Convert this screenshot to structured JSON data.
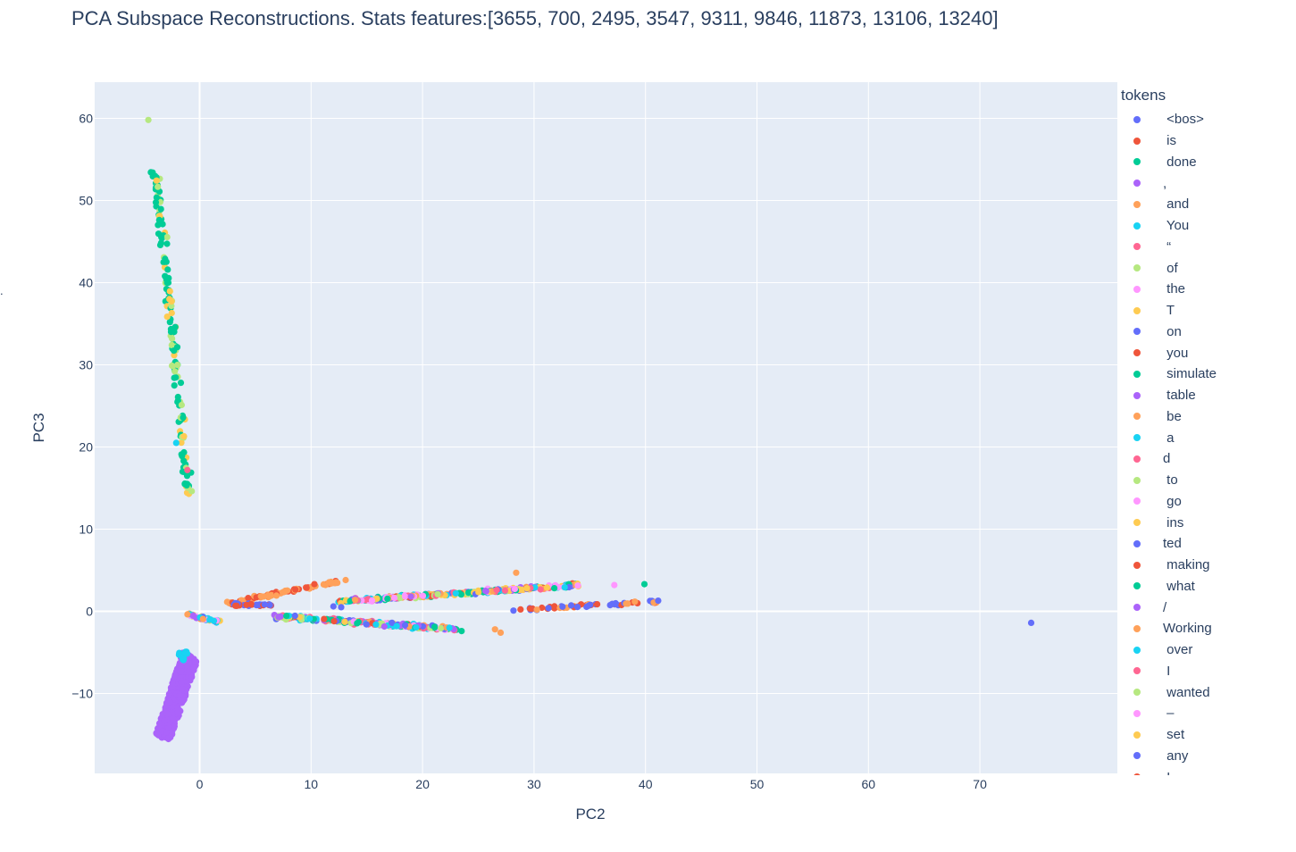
{
  "chart_data": {
    "type": "scatter",
    "title": "PCA Subspace Reconstructions. Stats features:[3655, 700, 2495, 3547, 9311, 9846, 11873, 13106, 13240]",
    "xlabel": "PC2",
    "ylabel": "PC3",
    "xlim": [
      -9.5,
      82
    ],
    "ylim": [
      -19.5,
      64.5
    ],
    "x_ticks": [
      0,
      10,
      20,
      30,
      40,
      50,
      60,
      70
    ],
    "y_ticks": [
      -10,
      0,
      10,
      20,
      30,
      40,
      50,
      60
    ],
    "y_tick_labels": [
      "−10",
      "0",
      "10",
      "20",
      "30",
      "40",
      "50",
      "60"
    ],
    "grid": true,
    "legend_title": "tokens",
    "legend_position": "right",
    "series": [
      {
        "name": " <bos>",
        "color": "#636efa"
      },
      {
        "name": " is",
        "color": "#EF553B"
      },
      {
        "name": " done",
        "color": "#00cc96"
      },
      {
        "name": ",",
        "color": "#ab63fa"
      },
      {
        "name": " and",
        "color": "#FFA15A"
      },
      {
        "name": " You",
        "color": "#19d3f3"
      },
      {
        "name": " “",
        "color": "#FF6692"
      },
      {
        "name": " of",
        "color": "#B6E880"
      },
      {
        "name": " the",
        "color": "#FF97FF"
      },
      {
        "name": " T",
        "color": "#FECB52"
      },
      {
        "name": " on",
        "color": "#636efa"
      },
      {
        "name": " you",
        "color": "#EF553B"
      },
      {
        "name": " simulate",
        "color": "#00cc96"
      },
      {
        "name": " table",
        "color": "#ab63fa"
      },
      {
        "name": " be",
        "color": "#FFA15A"
      },
      {
        "name": " a",
        "color": "#19d3f3"
      },
      {
        "name": "d",
        "color": "#FF6692"
      },
      {
        "name": " to",
        "color": "#B6E880"
      },
      {
        "name": " go",
        "color": "#FF97FF"
      },
      {
        "name": " ins",
        "color": "#FECB52"
      },
      {
        "name": "ted",
        "color": "#636efa"
      },
      {
        "name": " making",
        "color": "#EF553B"
      },
      {
        "name": " what",
        "color": "#00cc96"
      },
      {
        "name": "/",
        "color": "#ab63fa"
      },
      {
        "name": "Working",
        "color": "#FFA15A"
      },
      {
        "name": " over",
        "color": "#19d3f3"
      },
      {
        "name": " I",
        "color": "#FF6692"
      },
      {
        "name": " wanted",
        "color": "#B6E880"
      },
      {
        "name": " –",
        "color": "#FF97FF"
      },
      {
        "name": " set",
        "color": "#FECB52"
      },
      {
        "name": " any",
        "color": "#636efa"
      },
      {
        "name": " I",
        "color": "#EF553B"
      }
    ],
    "clusters": [
      {
        "kind": "line",
        "from": [
          -4.0,
          54.0
        ],
        "to": [
          -1.0,
          14.0
        ],
        "count": 150,
        "width": 0.5,
        "series_idx": [
          2,
          2,
          2,
          12,
          22,
          7,
          17,
          27,
          9
        ],
        "outliers": [
          [
            -4.6,
            59.8,
            7
          ],
          [
            -2.1,
            20.5,
            5
          ],
          [
            -1.4,
            21.3,
            9
          ],
          [
            -1.1,
            17.2,
            6
          ]
        ]
      },
      {
        "kind": "band",
        "corners": [
          [
            -4.0,
            -15.2
          ],
          [
            -1.5,
            -4.8
          ],
          [
            -0.2,
            -6.0
          ],
          [
            -2.6,
            -15.6
          ]
        ],
        "count": 420,
        "series_idx": [
          3,
          13,
          23
        ],
        "extra": [
          [
            -1.8,
            -5.3,
            5
          ],
          [
            -1.5,
            -5.8,
            5
          ],
          [
            -1.2,
            -5.0,
            15
          ]
        ]
      },
      {
        "kind": "line",
        "from": [
          -1.3,
          -0.3
        ],
        "to": [
          1.6,
          -1.2
        ],
        "count": 45,
        "width": 0.5,
        "series_idx": [
          0,
          3,
          4,
          5,
          8,
          9,
          18,
          25
        ]
      },
      {
        "kind": "line",
        "from": [
          2.5,
          1.0
        ],
        "to": [
          12.5,
          3.6
        ],
        "count": 80,
        "width": 0.45,
        "series_idx": [
          4,
          4,
          4,
          1,
          11,
          21,
          14,
          24
        ]
      },
      {
        "kind": "line",
        "from": [
          3.0,
          0.8
        ],
        "to": [
          6.5,
          0.8
        ],
        "count": 30,
        "width": 0.4,
        "series_idx": [
          0,
          10,
          20,
          1,
          11
        ]
      },
      {
        "kind": "line",
        "from": [
          12.5,
          1.2
        ],
        "to": [
          34.0,
          3.2
        ],
        "count": 320,
        "width": 0.55,
        "series_idx": [
          0,
          1,
          2,
          3,
          4,
          5,
          6,
          7,
          8,
          9,
          12,
          18,
          25,
          28,
          29,
          14
        ]
      },
      {
        "kind": "line",
        "from": [
          6.5,
          -0.6
        ],
        "to": [
          23.0,
          -2.2
        ],
        "count": 240,
        "width": 0.6,
        "series_idx": [
          0,
          1,
          2,
          3,
          4,
          5,
          6,
          7,
          8,
          9,
          10,
          13,
          17,
          22,
          25,
          26
        ]
      },
      {
        "kind": "line",
        "from": [
          28.0,
          0.1
        ],
        "to": [
          43.0,
          1.4
        ],
        "count": 60,
        "width": 0.5,
        "series_idx": [
          0,
          10,
          20,
          30,
          1,
          11,
          21,
          4,
          24
        ]
      },
      {
        "kind": "points",
        "points": [
          [
            74.6,
            -1.4,
            0
          ],
          [
            39.9,
            3.3,
            12
          ],
          [
            28.4,
            4.7,
            4
          ],
          [
            37.2,
            3.2,
            8
          ],
          [
            26.5,
            -2.2,
            4
          ],
          [
            27.0,
            -2.6,
            4
          ],
          [
            23.5,
            -2.4,
            2
          ],
          [
            10.3,
            3.3,
            1
          ],
          [
            13.1,
            3.8,
            4
          ],
          [
            12.0,
            0.6,
            0
          ],
          [
            12.7,
            0.5,
            10
          ],
          [
            22.4,
            -2.0,
            15
          ]
        ]
      }
    ]
  }
}
